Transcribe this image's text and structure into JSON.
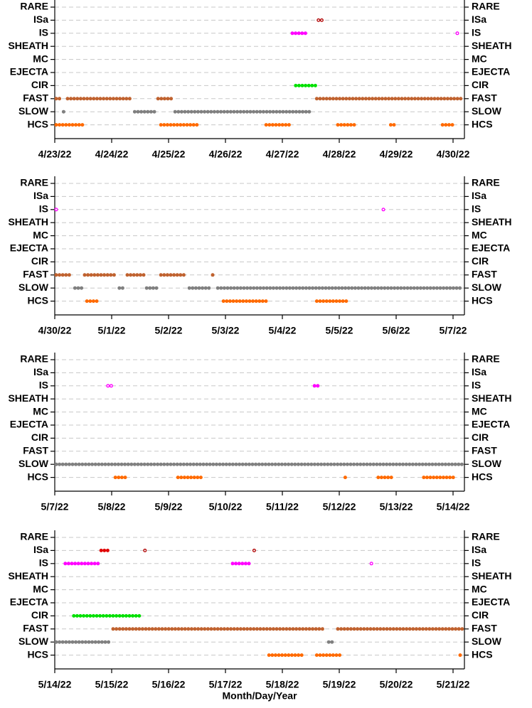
{
  "chart_data": [
    {
      "type": "timeline",
      "xlim": [
        0,
        7.2
      ],
      "xticks": [
        {
          "value": 0,
          "label": "4/23/22"
        },
        {
          "value": 1,
          "label": "4/24/22"
        },
        {
          "value": 2,
          "label": "4/25/22"
        },
        {
          "value": 3,
          "label": "4/26/22"
        },
        {
          "value": 4,
          "label": "4/27/22"
        },
        {
          "value": 5,
          "label": "4/28/22"
        },
        {
          "value": 6,
          "label": "4/29/22"
        },
        {
          "value": 7,
          "label": "4/30/22"
        }
      ],
      "rows": [
        {
          "name": "RARE",
          "segments": []
        },
        {
          "name": "ISa",
          "segments": [
            {
              "color": "#b00000",
              "marker": "open",
              "x": [
                4.61,
                4.76
              ]
            }
          ]
        },
        {
          "name": "IS",
          "segments": [
            {
              "color": "#ff00ff",
              "marker": "filled",
              "x": [
                4.15,
                4.44
              ]
            },
            {
              "color": "#ff00ff",
              "marker": "open",
              "x": [
                7.05,
                7.14
              ]
            }
          ]
        },
        {
          "name": "SHEATH",
          "segments": []
        },
        {
          "name": "MC",
          "segments": []
        },
        {
          "name": "EJECTA",
          "segments": []
        },
        {
          "name": "CIR",
          "segments": [
            {
              "color": "#00e000",
              "marker": "filled",
              "x": [
                4.21,
                4.61
              ]
            }
          ]
        },
        {
          "name": "FAST",
          "segments": [
            {
              "color": "#c0622f",
              "marker": "filled",
              "x": [
                0,
                0.11
              ]
            },
            {
              "color": "#c0622f",
              "marker": "filled",
              "x": [
                0.2,
                1.38
              ]
            },
            {
              "color": "#c0622f",
              "marker": "filled",
              "x": [
                1.79,
                2.09
              ]
            },
            {
              "color": "#c0622f",
              "marker": "filled",
              "x": [
                4.58,
                7.2
              ]
            }
          ]
        },
        {
          "name": "SLOW",
          "segments": [
            {
              "color": "#808080",
              "marker": "filled",
              "x": [
                0.13,
                0.2
              ]
            },
            {
              "color": "#808080",
              "marker": "filled",
              "x": [
                1.38,
                1.79
              ]
            },
            {
              "color": "#808080",
              "marker": "filled",
              "x": [
                2.09,
                4.55
              ]
            }
          ]
        },
        {
          "name": "HCS",
          "segments": [
            {
              "color": "#ff6a00",
              "marker": "filled",
              "x": [
                0,
                0.56
              ]
            },
            {
              "color": "#ff6a00",
              "marker": "filled",
              "x": [
                1.84,
                2.55
              ]
            },
            {
              "color": "#ff6a00",
              "marker": "filled",
              "x": [
                3.69,
                4.15
              ]
            },
            {
              "color": "#ff6a00",
              "marker": "filled",
              "x": [
                4.95,
                5.31
              ]
            },
            {
              "color": "#ff6a00",
              "marker": "filled",
              "x": [
                5.88,
                5.99
              ]
            },
            {
              "color": "#ff6a00",
              "marker": "filled",
              "x": [
                6.79,
                7.04
              ]
            }
          ]
        }
      ]
    },
    {
      "type": "timeline",
      "xlim": [
        0,
        7.2
      ],
      "xticks": [
        {
          "value": 0,
          "label": "4/30/22"
        },
        {
          "value": 1,
          "label": "5/1/22"
        },
        {
          "value": 2,
          "label": "5/2/22"
        },
        {
          "value": 3,
          "label": "5/3/22"
        },
        {
          "value": 4,
          "label": "5/4/22"
        },
        {
          "value": 5,
          "label": "5/5/22"
        },
        {
          "value": 6,
          "label": "5/6/22"
        },
        {
          "value": 7,
          "label": "5/7/22"
        }
      ],
      "rows": [
        {
          "name": "RARE",
          "segments": []
        },
        {
          "name": "ISa",
          "segments": []
        },
        {
          "name": "IS",
          "segments": [
            {
              "color": "#ff00ff",
              "marker": "open",
              "x": [
                0,
                0.05
              ]
            },
            {
              "color": "#ff00ff",
              "marker": "open",
              "x": [
                5.75,
                5.81
              ]
            }
          ]
        },
        {
          "name": "SHEATH",
          "segments": []
        },
        {
          "name": "MC",
          "segments": []
        },
        {
          "name": "EJECTA",
          "segments": []
        },
        {
          "name": "CIR",
          "segments": []
        },
        {
          "name": "FAST",
          "segments": [
            {
              "color": "#c0622f",
              "marker": "filled",
              "x": [
                0,
                0.33
              ]
            },
            {
              "color": "#c0622f",
              "marker": "filled",
              "x": [
                0.5,
                1.11
              ]
            },
            {
              "color": "#c0622f",
              "marker": "filled",
              "x": [
                1.25,
                1.59
              ]
            },
            {
              "color": "#c0622f",
              "marker": "filled",
              "x": [
                1.84,
                2.34
              ]
            },
            {
              "color": "#c0622f",
              "marker": "filled",
              "x": [
                2.75,
                2.84
              ]
            }
          ]
        },
        {
          "name": "SLOW",
          "segments": [
            {
              "color": "#808080",
              "marker": "filled",
              "x": [
                0.33,
                0.5
              ]
            },
            {
              "color": "#808080",
              "marker": "filled",
              "x": [
                1.11,
                1.25
              ]
            },
            {
              "color": "#808080",
              "marker": "filled",
              "x": [
                1.59,
                1.84
              ]
            },
            {
              "color": "#808080",
              "marker": "filled",
              "x": [
                2.34,
                2.75
              ]
            },
            {
              "color": "#808080",
              "marker": "filled",
              "x": [
                2.84,
                7.2
              ]
            }
          ]
        },
        {
          "name": "HCS",
          "segments": [
            {
              "color": "#ff6a00",
              "marker": "filled",
              "x": [
                0.54,
                0.78
              ]
            },
            {
              "color": "#ff6a00",
              "marker": "filled",
              "x": [
                2.94,
                3.74
              ]
            },
            {
              "color": "#ff6a00",
              "marker": "filled",
              "x": [
                4.58,
                5.2
              ]
            }
          ]
        }
      ]
    },
    {
      "type": "timeline",
      "xlim": [
        0,
        7.2
      ],
      "xticks": [
        {
          "value": 0,
          "label": "5/7/22"
        },
        {
          "value": 1,
          "label": "5/8/22"
        },
        {
          "value": 2,
          "label": "5/9/22"
        },
        {
          "value": 3,
          "label": "5/10/22"
        },
        {
          "value": 4,
          "label": "5/11/22"
        },
        {
          "value": 5,
          "label": "5/12/22"
        },
        {
          "value": 6,
          "label": "5/13/22"
        },
        {
          "value": 7,
          "label": "5/14/22"
        }
      ],
      "rows": [
        {
          "name": "RARE",
          "segments": []
        },
        {
          "name": "ISa",
          "segments": []
        },
        {
          "name": "IS",
          "segments": [
            {
              "color": "#ff00ff",
              "marker": "open",
              "x": [
                0.91,
                1.04
              ]
            },
            {
              "color": "#ff00ff",
              "marker": "filled",
              "x": [
                4.54,
                4.7
              ]
            }
          ]
        },
        {
          "name": "SHEATH",
          "segments": []
        },
        {
          "name": "MC",
          "segments": []
        },
        {
          "name": "EJECTA",
          "segments": []
        },
        {
          "name": "CIR",
          "segments": []
        },
        {
          "name": "FAST",
          "segments": []
        },
        {
          "name": "SLOW",
          "segments": [
            {
              "color": "#808080",
              "marker": "filled",
              "x": [
                0,
                7.2
              ]
            }
          ]
        },
        {
          "name": "HCS",
          "segments": [
            {
              "color": "#ff6a00",
              "marker": "filled",
              "x": [
                1.04,
                1.3
              ]
            },
            {
              "color": "#ff6a00",
              "marker": "filled",
              "x": [
                2.14,
                2.6
              ]
            },
            {
              "color": "#ff6a00",
              "marker": "filled",
              "x": [
                5.08,
                5.15
              ]
            },
            {
              "color": "#ff6a00",
              "marker": "filled",
              "x": [
                5.66,
                5.95
              ]
            },
            {
              "color": "#ff6a00",
              "marker": "filled",
              "x": [
                6.46,
                7.05
              ]
            }
          ]
        }
      ]
    },
    {
      "type": "timeline",
      "xlim": [
        0,
        7.2
      ],
      "xlabel": "Month/Day/Year",
      "xticks": [
        {
          "value": 0,
          "label": "5/14/22"
        },
        {
          "value": 1,
          "label": "5/15/22"
        },
        {
          "value": 2,
          "label": "5/16/22"
        },
        {
          "value": 3,
          "label": "5/17/22"
        },
        {
          "value": 4,
          "label": "5/18/22"
        },
        {
          "value": 5,
          "label": "5/19/22"
        },
        {
          "value": 6,
          "label": "5/20/22"
        },
        {
          "value": 7,
          "label": "5/21/22"
        }
      ],
      "rows": [
        {
          "name": "RARE",
          "segments": []
        },
        {
          "name": "ISa",
          "segments": [
            {
              "color": "#e00000",
              "marker": "filled",
              "x": [
                0.79,
                1.0
              ]
            },
            {
              "color": "#b00000",
              "marker": "open",
              "x": [
                1.56,
                1.63
              ]
            },
            {
              "color": "#b00000",
              "marker": "open",
              "x": [
                3.48,
                3.55
              ]
            }
          ]
        },
        {
          "name": "IS",
          "segments": [
            {
              "color": "#ff00ff",
              "marker": "filled",
              "x": [
                0.16,
                0.8
              ]
            },
            {
              "color": "#ff00ff",
              "marker": "filled",
              "x": [
                3.1,
                3.48
              ]
            },
            {
              "color": "#ff00ff",
              "marker": "open",
              "x": [
                5.54,
                5.63
              ]
            }
          ]
        },
        {
          "name": "SHEATH",
          "segments": []
        },
        {
          "name": "MC",
          "segments": []
        },
        {
          "name": "EJECTA",
          "segments": []
        },
        {
          "name": "CIR",
          "segments": [
            {
              "color": "#00e000",
              "marker": "filled",
              "x": [
                0.31,
                1.54
              ]
            }
          ]
        },
        {
          "name": "FAST",
          "segments": [
            {
              "color": "#c0622f",
              "marker": "filled",
              "x": [
                1.0,
                4.78
              ]
            },
            {
              "color": "#c0622f",
              "marker": "filled",
              "x": [
                4.95,
                7.2
              ]
            }
          ]
        },
        {
          "name": "SLOW",
          "segments": [
            {
              "color": "#808080",
              "marker": "filled",
              "x": [
                0,
                1.0
              ]
            },
            {
              "color": "#808080",
              "marker": "filled",
              "x": [
                4.79,
                4.95
              ]
            }
          ]
        },
        {
          "name": "HCS",
          "segments": [
            {
              "color": "#ff6a00",
              "marker": "filled",
              "x": [
                3.74,
                4.41
              ]
            },
            {
              "color": "#ff6a00",
              "marker": "filled",
              "x": [
                4.58,
                5.08
              ]
            },
            {
              "color": "#ff6a00",
              "marker": "filled",
              "x": [
                7.1,
                7.2
              ]
            }
          ]
        }
      ]
    }
  ]
}
